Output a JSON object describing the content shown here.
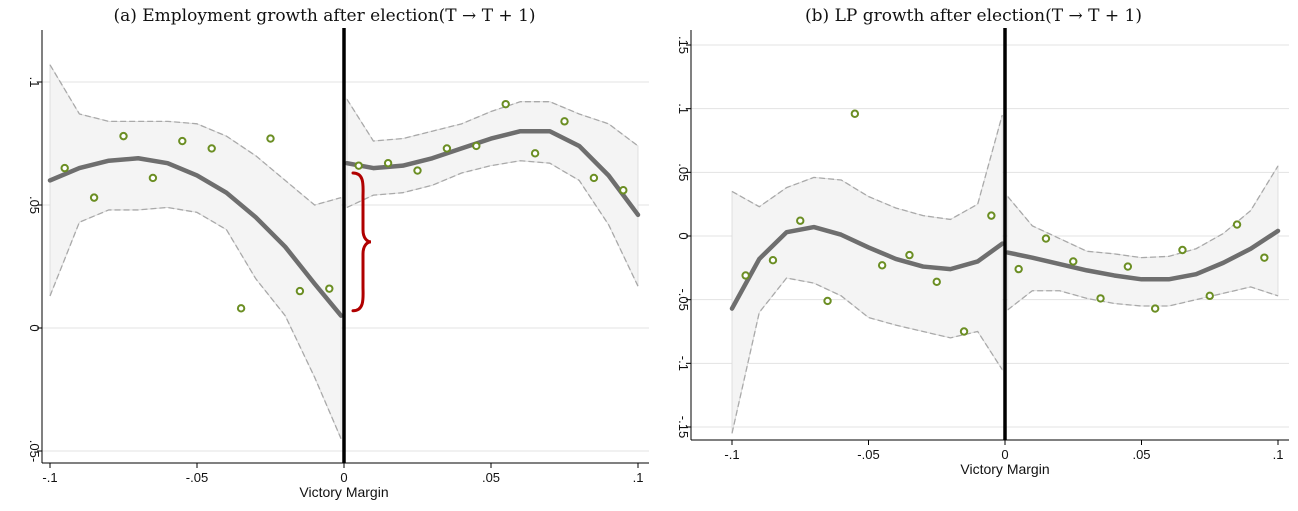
{
  "figure": {
    "background": "#ffffff"
  },
  "panels": [
    {
      "title": "(a) Employment growth after election(T → T + 1)",
      "xlabel": "Victory Margin"
    },
    {
      "title": "(b) LP growth after election(T → T + 1)",
      "xlabel": "Victory Margin"
    }
  ],
  "colors": {
    "fit": "#6e6e6e",
    "ci": "#a9a9a9",
    "band": "#f4f4f4",
    "points": "#6b8e23",
    "cutoff": "#000000",
    "brace": "#b00000",
    "grid": "#e3e3e3"
  },
  "chart_data": [
    {
      "type": "scatter",
      "title": "(a) Employment growth after election(T → T + 1)",
      "xlabel": "Victory Margin",
      "ylabel": "",
      "xlim": [
        -0.1,
        0.1
      ],
      "ylim": [
        -0.05,
        0.1
      ],
      "xticks": [
        -0.1,
        -0.05,
        0,
        0.05,
        0.1
      ],
      "xtick_labels": [
        "-.1",
        "-.05",
        "0",
        ".05",
        ".1"
      ],
      "yticks": [
        -0.05,
        0,
        0.05,
        0.1
      ],
      "ytick_labels": [
        ".05-",
        "0",
        ".05",
        ".1"
      ],
      "grid": true,
      "cutoff": 0,
      "brace_gap": [
        0.007,
        0.063
      ],
      "points": [
        {
          "x": -0.095,
          "y": 0.065
        },
        {
          "x": -0.085,
          "y": 0.053
        },
        {
          "x": -0.075,
          "y": 0.078
        },
        {
          "x": -0.065,
          "y": 0.061
        },
        {
          "x": -0.055,
          "y": 0.076
        },
        {
          "x": -0.045,
          "y": 0.073
        },
        {
          "x": -0.035,
          "y": 0.008
        },
        {
          "x": -0.025,
          "y": 0.077
        },
        {
          "x": -0.015,
          "y": 0.015
        },
        {
          "x": -0.005,
          "y": 0.016
        },
        {
          "x": 0.005,
          "y": 0.066
        },
        {
          "x": 0.015,
          "y": 0.067
        },
        {
          "x": 0.025,
          "y": 0.064
        },
        {
          "x": 0.035,
          "y": 0.073
        },
        {
          "x": 0.045,
          "y": 0.074
        },
        {
          "x": 0.055,
          "y": 0.091
        },
        {
          "x": 0.065,
          "y": 0.071
        },
        {
          "x": 0.075,
          "y": 0.084
        },
        {
          "x": 0.085,
          "y": 0.061
        },
        {
          "x": 0.095,
          "y": 0.056
        }
      ],
      "segments": [
        {
          "x": [
            -0.1,
            -0.09,
            -0.08,
            -0.07,
            -0.06,
            -0.05,
            -0.04,
            -0.03,
            -0.02,
            -0.01,
            -0.001
          ],
          "fit": [
            0.06,
            0.065,
            0.068,
            0.069,
            0.067,
            0.062,
            0.055,
            0.045,
            0.033,
            0.018,
            0.005
          ],
          "upper": [
            0.107,
            0.087,
            0.084,
            0.084,
            0.084,
            0.083,
            0.078,
            0.07,
            0.06,
            0.05,
            0.053
          ],
          "lower": [
            0.013,
            0.043,
            0.048,
            0.048,
            0.049,
            0.047,
            0.04,
            0.02,
            0.005,
            -0.02,
            -0.045
          ]
        },
        {
          "x": [
            0.001,
            0.01,
            0.02,
            0.03,
            0.04,
            0.05,
            0.06,
            0.07,
            0.08,
            0.09,
            0.1
          ],
          "fit": [
            0.067,
            0.065,
            0.066,
            0.069,
            0.073,
            0.077,
            0.08,
            0.08,
            0.074,
            0.062,
            0.046
          ],
          "upper": [
            0.093,
            0.076,
            0.077,
            0.08,
            0.083,
            0.088,
            0.092,
            0.092,
            0.087,
            0.083,
            0.074
          ],
          "lower": [
            0.049,
            0.054,
            0.055,
            0.058,
            0.063,
            0.066,
            0.068,
            0.067,
            0.06,
            0.042,
            0.017
          ]
        }
      ]
    },
    {
      "type": "scatter",
      "title": "(b) LP growth after election(T → T + 1)",
      "xlabel": "Victory Margin",
      "ylabel": "",
      "xlim": [
        -0.1,
        0.1
      ],
      "ylim": [
        -0.15,
        0.15
      ],
      "xticks": [
        -0.1,
        -0.05,
        0,
        0.05,
        0.1
      ],
      "xtick_labels": [
        "-.1",
        "-.05",
        "0",
        ".05",
        ".1"
      ],
      "yticks": [
        -0.15,
        -0.1,
        -0.05,
        0,
        0.05,
        0.1,
        0.15
      ],
      "ytick_labels": [
        "-.15",
        "-.1",
        "-.05",
        "0",
        ".05",
        ".1",
        ".15"
      ],
      "grid": true,
      "cutoff": 0,
      "points": [
        {
          "x": -0.095,
          "y": -0.031
        },
        {
          "x": -0.085,
          "y": -0.019
        },
        {
          "x": -0.075,
          "y": 0.012
        },
        {
          "x": -0.065,
          "y": -0.051
        },
        {
          "x": -0.055,
          "y": 0.096
        },
        {
          "x": -0.045,
          "y": -0.023
        },
        {
          "x": -0.035,
          "y": -0.015
        },
        {
          "x": -0.025,
          "y": -0.036
        },
        {
          "x": -0.015,
          "y": -0.075
        },
        {
          "x": -0.005,
          "y": 0.016
        },
        {
          "x": 0.005,
          "y": -0.026
        },
        {
          "x": 0.015,
          "y": -0.002
        },
        {
          "x": 0.025,
          "y": -0.02
        },
        {
          "x": 0.035,
          "y": -0.049
        },
        {
          "x": 0.045,
          "y": -0.024
        },
        {
          "x": 0.055,
          "y": -0.057
        },
        {
          "x": 0.065,
          "y": -0.011
        },
        {
          "x": 0.075,
          "y": -0.047
        },
        {
          "x": 0.085,
          "y": 0.009
        },
        {
          "x": 0.095,
          "y": -0.017
        }
      ],
      "segments": [
        {
          "x": [
            -0.1,
            -0.09,
            -0.08,
            -0.07,
            -0.06,
            -0.05,
            -0.04,
            -0.03,
            -0.02,
            -0.01,
            -0.001
          ],
          "fit": [
            -0.057,
            -0.018,
            0.003,
            0.007,
            0.001,
            -0.009,
            -0.018,
            -0.024,
            -0.026,
            -0.02,
            -0.006
          ],
          "upper": [
            0.035,
            0.023,
            0.038,
            0.046,
            0.044,
            0.031,
            0.022,
            0.016,
            0.013,
            0.025,
            0.095
          ],
          "lower": [
            -0.155,
            -0.06,
            -0.033,
            -0.037,
            -0.047,
            -0.064,
            -0.07,
            -0.075,
            -0.08,
            -0.075,
            -0.105
          ]
        },
        {
          "x": [
            0.001,
            0.01,
            0.02,
            0.03,
            0.04,
            0.05,
            0.06,
            0.07,
            0.08,
            0.09,
            0.1
          ],
          "fit": [
            -0.013,
            -0.017,
            -0.022,
            -0.027,
            -0.031,
            -0.034,
            -0.034,
            -0.03,
            -0.021,
            -0.01,
            0.004
          ],
          "upper": [
            0.031,
            0.008,
            -0.002,
            -0.012,
            -0.014,
            -0.017,
            -0.016,
            -0.01,
            0.002,
            0.02,
            0.055
          ],
          "lower": [
            -0.058,
            -0.043,
            -0.043,
            -0.049,
            -0.053,
            -0.055,
            -0.055,
            -0.05,
            -0.045,
            -0.04,
            -0.047
          ]
        }
      ]
    }
  ]
}
